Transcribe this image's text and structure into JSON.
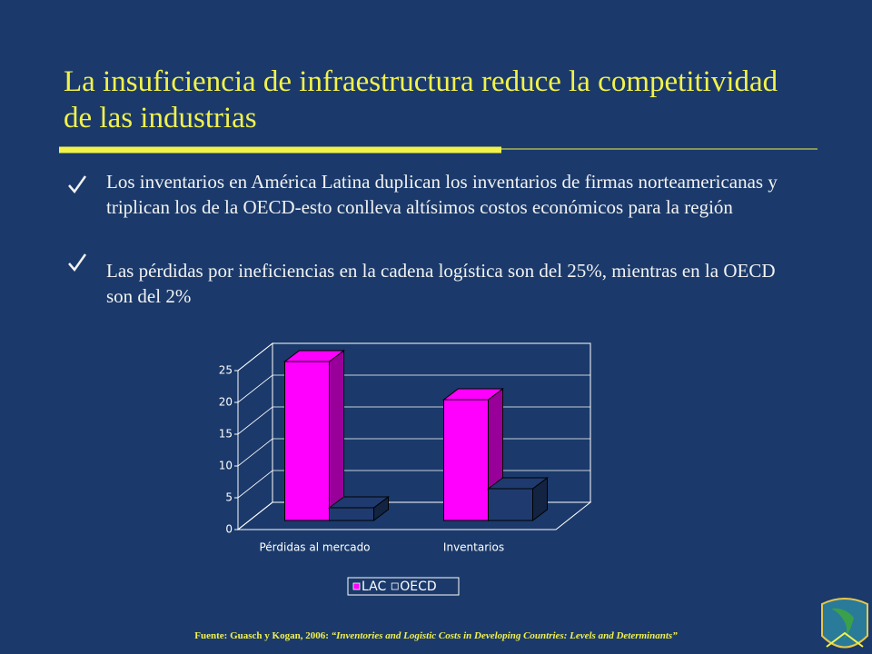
{
  "title": "La insuficiencia de infraestructura reduce la competitividad de las industrias",
  "bullets": [
    "Los inventarios en América Latina duplican los inventarios de firmas norteamericanas y triplican los de la OECD-esto conlleva altísimos costos económicos para la región",
    "Las pérdidas por ineficiencias en la cadena logística son del 25%, mientras en la OECD son del 2%"
  ],
  "source_label": "Fuente: Guasch y Kogan, 2006:",
  "source_title": "“Inventories and Logistic Costs in Developing Countries: Levels and Determinants”",
  "chart_data": {
    "type": "bar3d",
    "categories": [
      "Pérdidas al mercado",
      "Inventarios"
    ],
    "series": [
      {
        "name": "LAC",
        "color": "#ff00ff",
        "values": [
          25,
          19
        ]
      },
      {
        "name": "OECD",
        "color": "#1f3a6e",
        "values": [
          2,
          5
        ]
      }
    ],
    "ylim": [
      0,
      25
    ],
    "yticks": [
      0,
      5,
      10,
      15,
      20,
      25
    ],
    "grid": true,
    "legend": "bottom"
  }
}
